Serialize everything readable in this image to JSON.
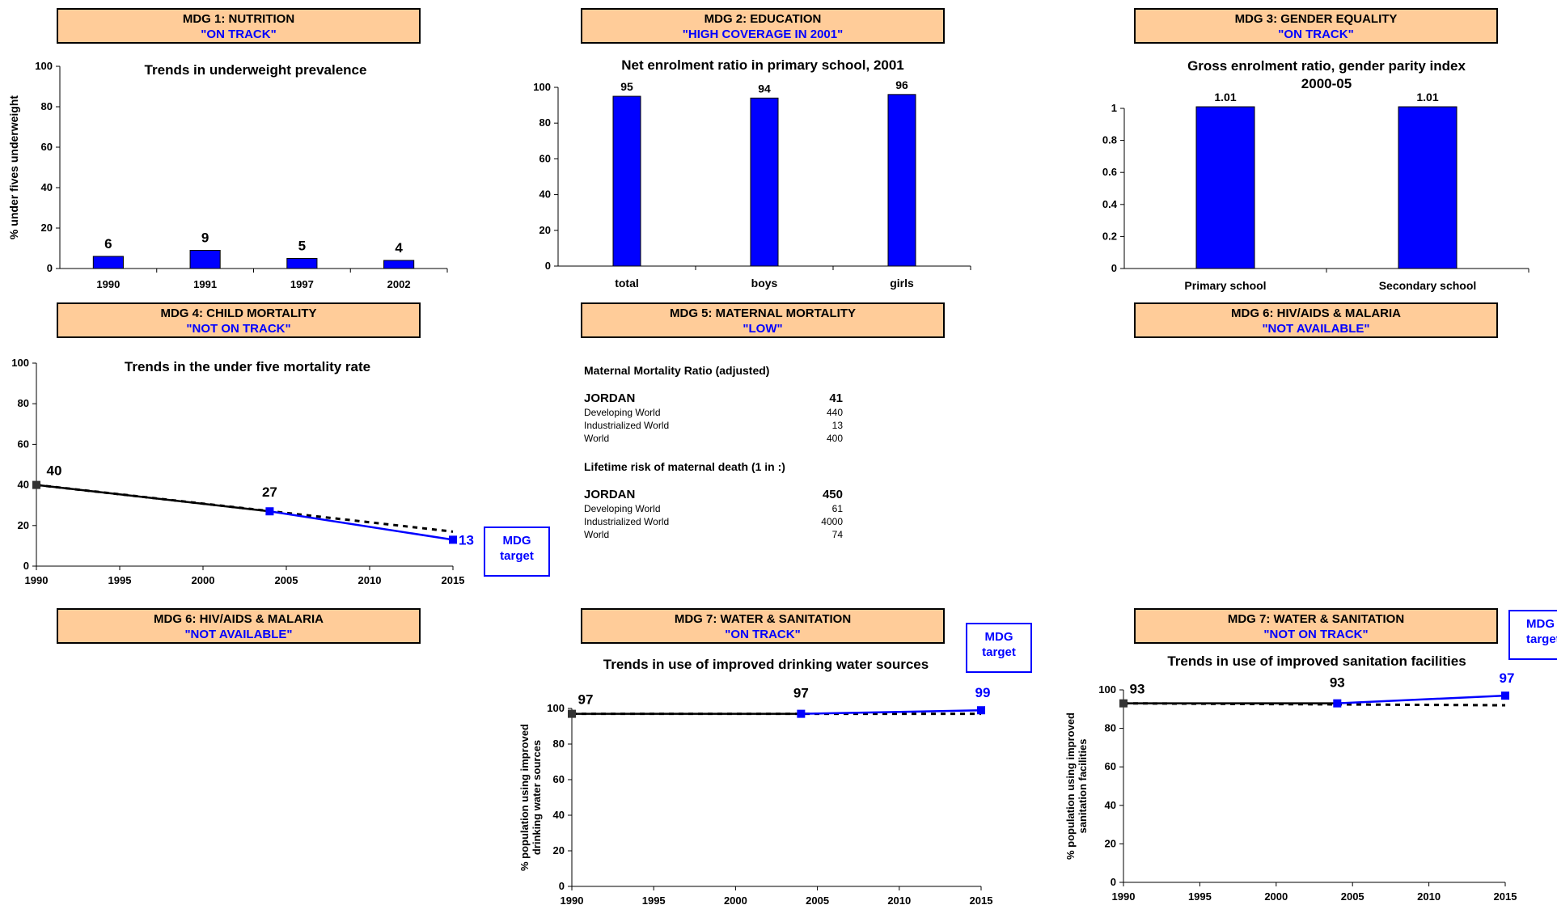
{
  "headers": [
    {
      "id": "mdg1",
      "line1": "MDG 1: NUTRITION",
      "line2": "\"ON TRACK\""
    },
    {
      "id": "mdg2",
      "line1": "MDG 2: EDUCATION",
      "line2": "\"HIGH COVERAGE IN 2001\""
    },
    {
      "id": "mdg3",
      "line1": "MDG 3: GENDER EQUALITY",
      "line2": "\"ON TRACK\""
    },
    {
      "id": "mdg4",
      "line1": "MDG 4: CHILD MORTALITY",
      "line2": "\"NOT ON TRACK\""
    },
    {
      "id": "mdg5",
      "line1": "MDG 5: MATERNAL MORTALITY",
      "line2": "\"LOW\""
    },
    {
      "id": "mdg6a",
      "line1": "MDG 6: HIV/AIDS & MALARIA",
      "line2": "\"NOT AVAILABLE\""
    },
    {
      "id": "mdg6b",
      "line1": "MDG 6: HIV/AIDS & MALARIA",
      "line2": "\"NOT AVAILABLE\""
    },
    {
      "id": "mdg7a",
      "line1": "MDG 7: WATER & SANITATION",
      "line2": "\"ON TRACK\""
    },
    {
      "id": "mdg7b",
      "line1": "MDG 7: WATER & SANITATION",
      "line2": "\"NOT ON TRACK\""
    }
  ],
  "mdg_target_label": {
    "line1": "MDG",
    "line2": "target"
  },
  "maternal": {
    "mmr_title": "Maternal Mortality Ratio (adjusted)",
    "mmr_rows": [
      {
        "label": "JORDAN",
        "value": "41"
      },
      {
        "label": "Developing World",
        "value": "440"
      },
      {
        "label": "Industrialized World",
        "value": "13"
      },
      {
        "label": "World",
        "value": "400"
      }
    ],
    "risk_title": "Lifetime risk of maternal death (1 in :)",
    "risk_rows": [
      {
        "label": "JORDAN",
        "value": "450"
      },
      {
        "label": "Developing World",
        "value": "61"
      },
      {
        "label": "Industrialized World",
        "value": "4000"
      },
      {
        "label": "World",
        "value": "74"
      }
    ]
  },
  "chart_data": [
    {
      "id": "underweight",
      "type": "bar",
      "title": "Trends in underweight prevalence",
      "ylabel": "% under fives underweight",
      "xlabel": "",
      "categories": [
        "1990",
        "1991",
        "1997",
        "2002"
      ],
      "values": [
        6,
        9,
        5,
        4
      ],
      "ylim": [
        0,
        100
      ],
      "yticks": [
        "0",
        "20",
        "40",
        "60",
        "80",
        "100"
      ],
      "bar_color": "#0000ff"
    },
    {
      "id": "enrolment",
      "type": "bar",
      "title": "Net enrolment ratio in primary school, 2001",
      "ylabel": "",
      "xlabel": "",
      "categories": [
        "total",
        "boys",
        "girls"
      ],
      "values": [
        95,
        94,
        96
      ],
      "ylim": [
        0,
        100
      ],
      "yticks": [
        "0",
        "20",
        "40",
        "60",
        "80",
        "100"
      ],
      "bar_color": "#0000ff"
    },
    {
      "id": "gpi",
      "type": "bar",
      "title": "Gross enrolment ratio, gender parity index",
      "subtitle": "2000-05",
      "ylabel": "",
      "xlabel": "",
      "categories": [
        "Primary school",
        "Secondary school"
      ],
      "values": [
        1.01,
        1.01
      ],
      "value_labels": [
        "1.01",
        "1.01"
      ],
      "ylim": [
        0,
        1
      ],
      "yticks": [
        "0",
        "0.2",
        "0.4",
        "0.6",
        "0.8",
        "1"
      ],
      "bar_color": "#0000ff"
    },
    {
      "id": "u5mr",
      "type": "line",
      "title": "Trends in the under five mortality rate",
      "ylabel": "",
      "xlabel": "",
      "xlim": [
        1990,
        2015
      ],
      "xticks": [
        "1990",
        "1995",
        "2000",
        "2005",
        "2010",
        "2015"
      ],
      "ylim": [
        0,
        100
      ],
      "yticks": [
        "0",
        "20",
        "40",
        "60",
        "80",
        "100"
      ],
      "series": [
        {
          "points": [
            [
              1990,
              40
            ],
            [
              2004,
              27
            ]
          ],
          "color": "#000000",
          "marker_colors": [
            "#333333",
            "#0000ff"
          ],
          "labels": [
            "40",
            "27"
          ]
        },
        {
          "points": [
            [
              2004,
              27
            ],
            [
              2015,
              13
            ]
          ],
          "color": "#0000ff",
          "labels": [
            "",
            "13"
          ]
        },
        {
          "points": [
            [
              1990,
              40
            ],
            [
              2015,
              17
            ]
          ],
          "color": "#000000",
          "dashed": true
        }
      ]
    },
    {
      "id": "water",
      "type": "line",
      "title": "Trends in use of improved drinking water sources",
      "ylabel": "% population using improved drinking water sources",
      "xlabel": "",
      "xlim": [
        1990,
        2015
      ],
      "xticks": [
        "1990",
        "1995",
        "2000",
        "2005",
        "2010",
        "2015"
      ],
      "ylim": [
        0,
        100
      ],
      "yticks": [
        "0",
        "20",
        "40",
        "60",
        "80",
        "100"
      ],
      "series": [
        {
          "points": [
            [
              1990,
              97
            ],
            [
              2004,
              97
            ]
          ],
          "color": "#000000",
          "marker_colors": [
            "#333333",
            "#0000ff"
          ],
          "labels": [
            "97",
            "97"
          ]
        },
        {
          "points": [
            [
              2004,
              97
            ],
            [
              2015,
              99
            ]
          ],
          "color": "#0000ff",
          "labels": [
            "",
            "99"
          ]
        },
        {
          "points": [
            [
              1990,
              97
            ],
            [
              2015,
              97
            ]
          ],
          "color": "#000000",
          "dashed": true
        }
      ]
    },
    {
      "id": "sanitation",
      "type": "line",
      "title": "Trends in use of improved sanitation facilities",
      "ylabel": "% population using improved sanitation facilities",
      "xlabel": "",
      "xlim": [
        1990,
        2015
      ],
      "xticks": [
        "1990",
        "1995",
        "2000",
        "2005",
        "2010",
        "2015"
      ],
      "ylim": [
        0,
        100
      ],
      "yticks": [
        "0",
        "20",
        "40",
        "60",
        "80",
        "100"
      ],
      "series": [
        {
          "points": [
            [
              1990,
              93
            ],
            [
              2004,
              93
            ]
          ],
          "color": "#000000",
          "marker_colors": [
            "#333333",
            "#0000ff"
          ],
          "labels": [
            "93",
            "93"
          ]
        },
        {
          "points": [
            [
              2004,
              93
            ],
            [
              2015,
              97
            ]
          ],
          "color": "#0000ff",
          "labels": [
            "",
            "97"
          ]
        },
        {
          "points": [
            [
              1990,
              93
            ],
            [
              2015,
              92
            ]
          ],
          "color": "#000000",
          "dashed": true
        }
      ]
    }
  ]
}
